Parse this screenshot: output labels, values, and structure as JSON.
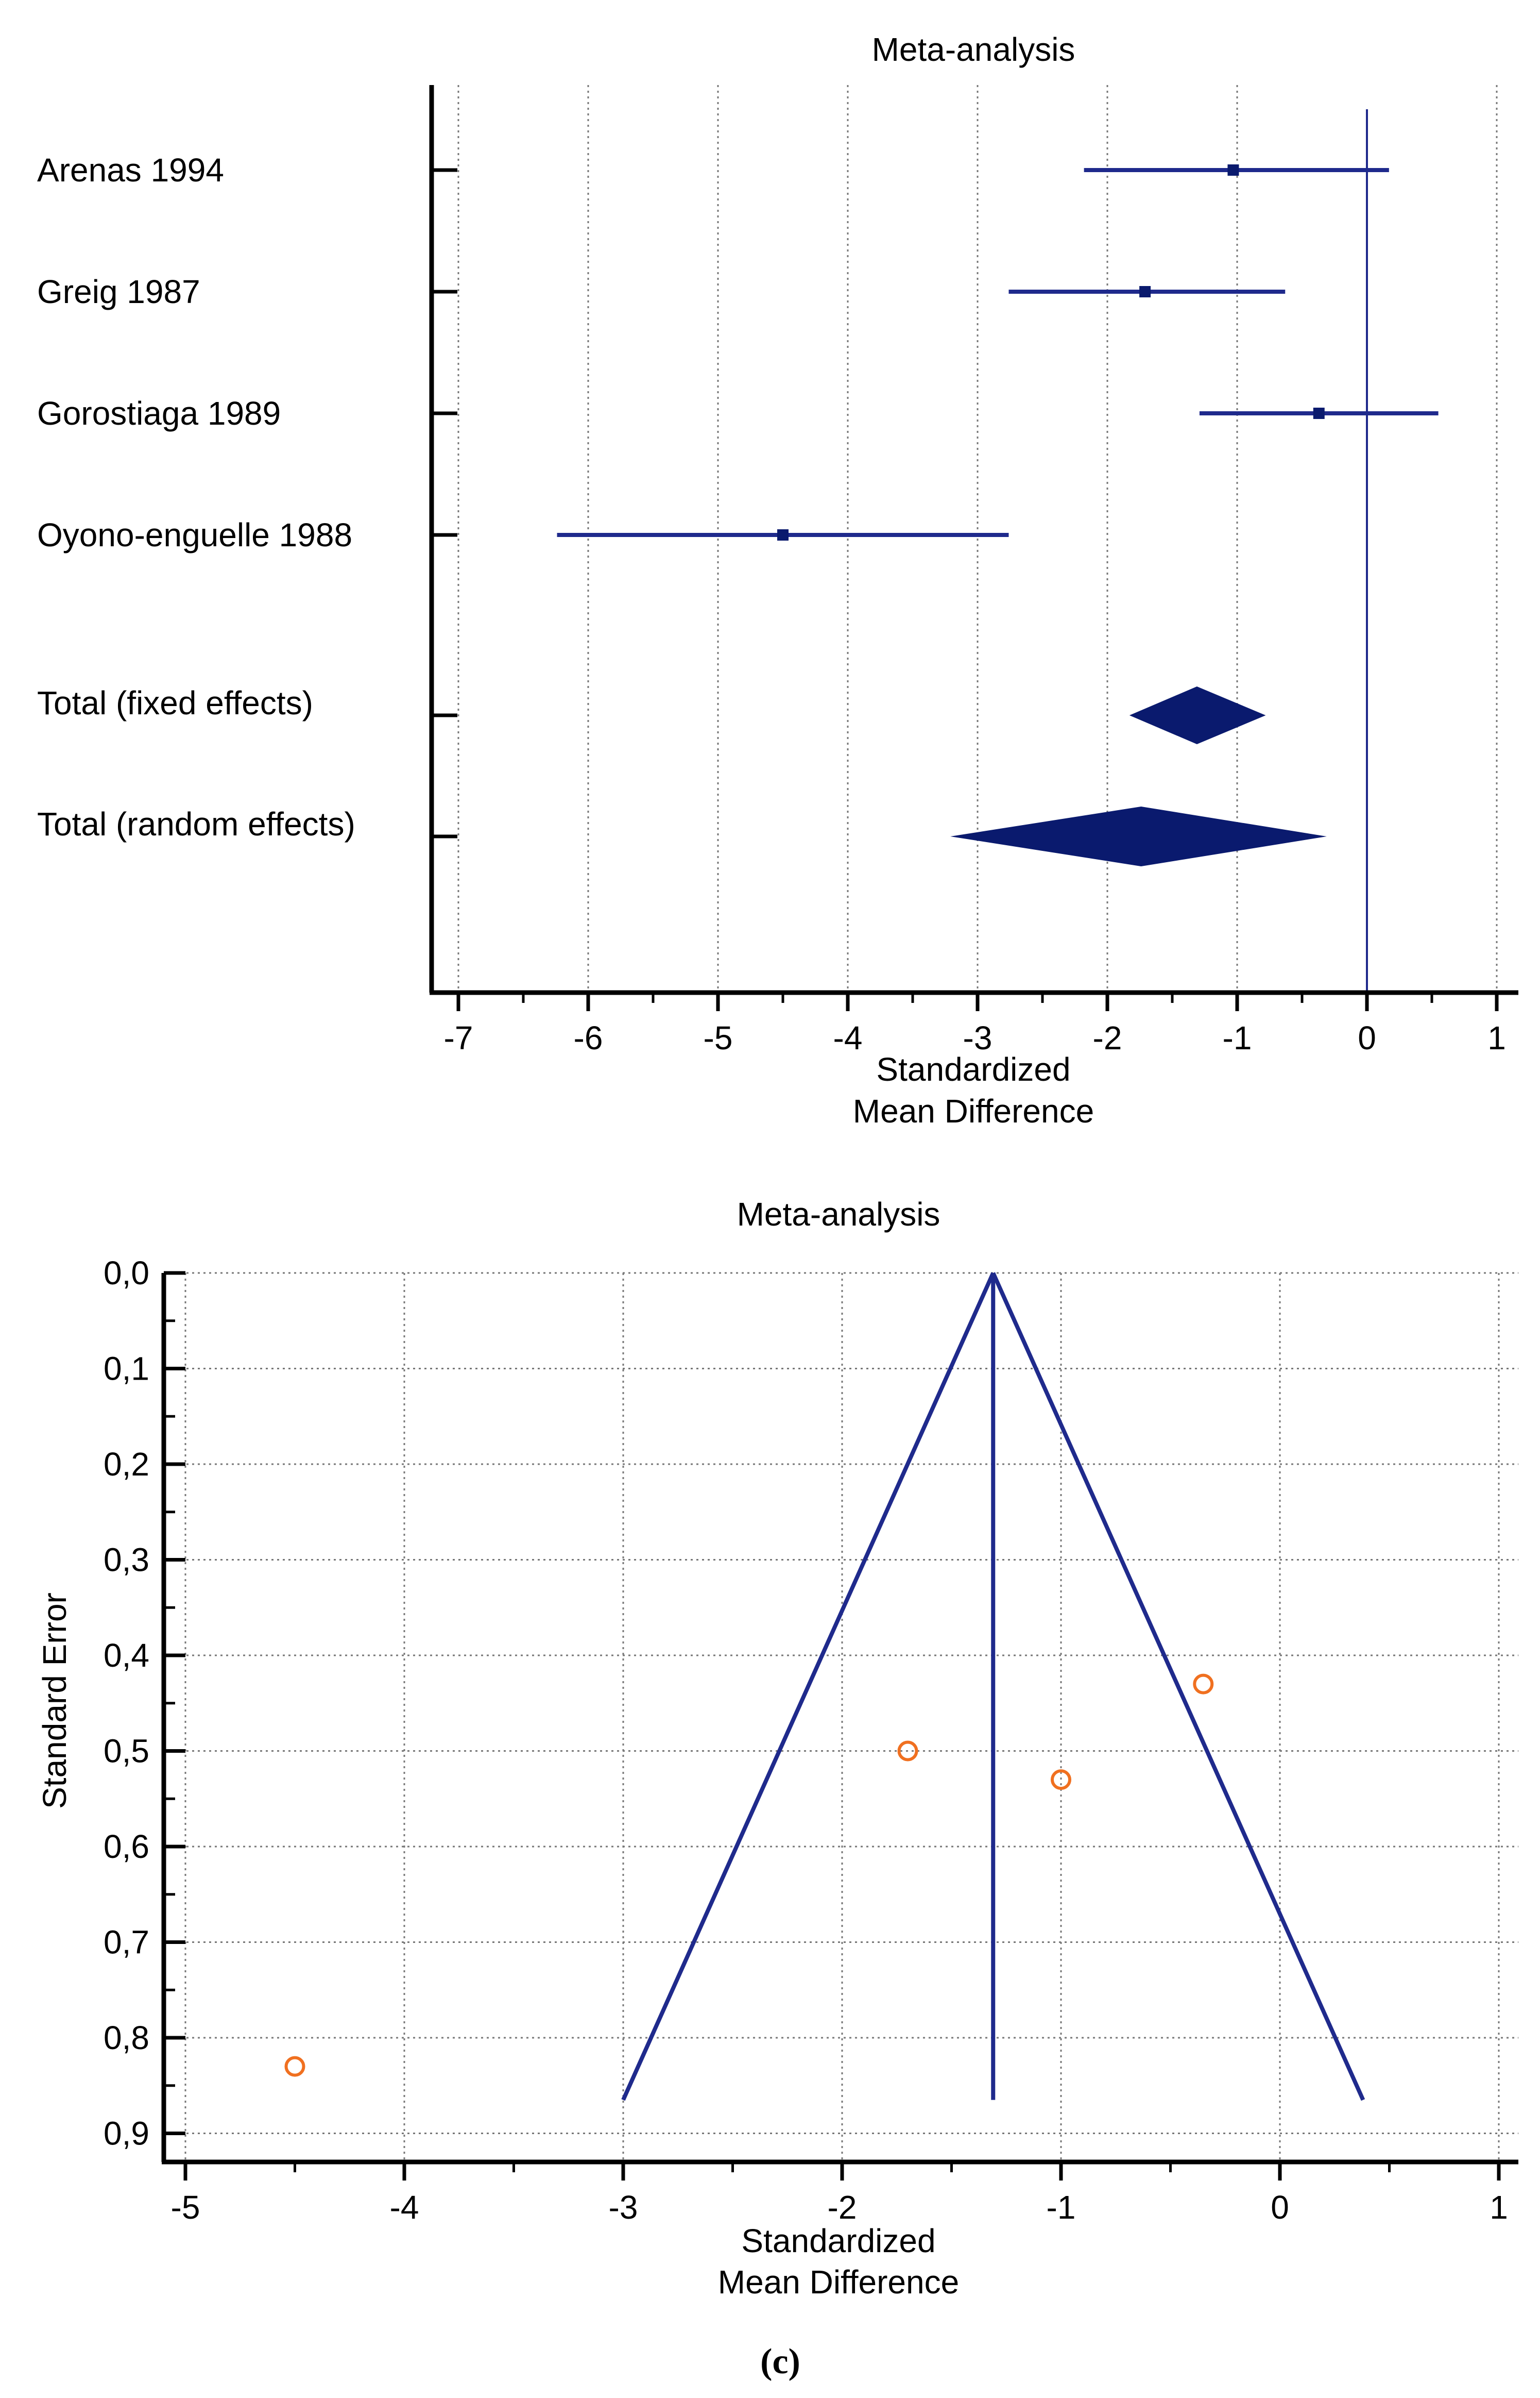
{
  "caption": "(c)",
  "chart_data": [
    {
      "type": "forest",
      "title": "Meta-analysis",
      "xlabel_line1": "Standardized",
      "xlabel_line2": "Mean Difference",
      "xlim": [
        -7.2,
        1.2
      ],
      "xticks": [
        -7,
        -6,
        -5,
        -4,
        -3,
        -2,
        -1,
        0,
        1
      ],
      "xtick_labels": [
        "-7",
        "-6",
        "-5",
        "-4",
        "-3",
        "-2",
        "-1",
        "0",
        "1"
      ],
      "reference_line": 0,
      "grid": "vertical dotted",
      "color": "#1f2a8c",
      "fill_color": "#0a1a6e",
      "studies": [
        {
          "name": "Arenas 1994",
          "estimate": -1.03,
          "lower": -2.18,
          "upper": 0.17
        },
        {
          "name": "Greig 1987",
          "estimate": -1.71,
          "lower": -2.76,
          "upper": -0.63
        },
        {
          "name": "Gorostiaga 1989",
          "estimate": -0.37,
          "lower": -1.29,
          "upper": 0.55
        },
        {
          "name": "Oyono-enguelle 1988",
          "estimate": -4.5,
          "lower": -6.24,
          "upper": -2.76
        }
      ],
      "totals": [
        {
          "name": "Total (fixed effects)",
          "estimate": -1.31,
          "lower": -1.83,
          "upper": -0.78
        },
        {
          "name": "Total (random effects)",
          "estimate": -1.74,
          "lower": -3.21,
          "upper": -0.31
        }
      ]
    },
    {
      "type": "funnel",
      "title": "Meta-analysis",
      "ylabel": "Standard Error",
      "xlabel_line1": "Standardized",
      "xlabel_line2": "Mean Difference",
      "xlim": [
        -5.05,
        1.1
      ],
      "ylim": [
        0.9,
        0.0
      ],
      "xticks": [
        -5,
        -4,
        -3,
        -2,
        -1,
        0,
        1
      ],
      "xtick_labels": [
        "-5",
        "-4",
        "-3",
        "-2",
        "-1",
        "0",
        "1"
      ],
      "yticks": [
        0.0,
        0.1,
        0.2,
        0.3,
        0.4,
        0.5,
        0.6,
        0.7,
        0.8,
        0.9
      ],
      "ytick_labels": [
        "0,0",
        "0,1",
        "0,2",
        "0,3",
        "0,4",
        "0,5",
        "0,6",
        "0,7",
        "0,8",
        "0,9"
      ],
      "grid": "dotted",
      "line_color": "#1f2a8c",
      "point_color": "#f07020",
      "pooled_estimate": -1.31,
      "funnel_se_max": 0.865,
      "funnel_left_at_max": -3.0,
      "funnel_right_at_max": 0.38,
      "points": [
        {
          "x": -0.35,
          "y": 0.43
        },
        {
          "x": -1.7,
          "y": 0.5
        },
        {
          "x": -1.0,
          "y": 0.53
        },
        {
          "x": -4.5,
          "y": 0.83
        }
      ]
    }
  ]
}
